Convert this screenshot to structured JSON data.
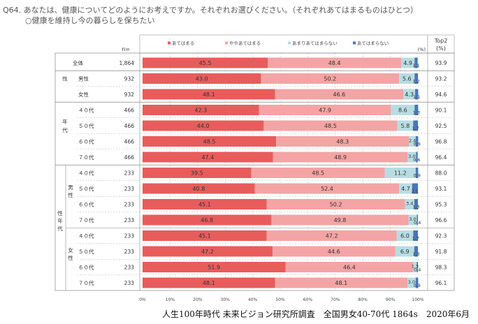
{
  "header": {
    "question": "Q64. あなたは、健康についてどのようにお考えですか。それぞれお選びください。（それぞれあてはまるものはひとつ）",
    "subtitle": "○健康を維持し今の暮らしを保ちたい"
  },
  "table": {
    "n_label": "n=",
    "pct_label": "(%)",
    "top2_label_line1": "Top2",
    "top2_label_line2": "(%)"
  },
  "footer": "人生100年時代 未来ビジョン研究所調査　全国男女40-70代 1864s　2020年6月",
  "groups": {
    "sex": "性",
    "age_line1": "年",
    "age_line2": "代",
    "sexage_line1": "性",
    "sexage_line2": "年",
    "sexage_line3": "代",
    "male_line1": "男",
    "male_line2": "性",
    "female_line1": "女",
    "female_line2": "性"
  },
  "colors": {
    "applies": "#e85c5c",
    "somewhat": "#f4a4a4",
    "not_really": "#b7dde3",
    "not_at_all": "#4a74b9"
  },
  "chart_data": {
    "type": "bar",
    "orientation": "horizontal",
    "stacked": true,
    "title": "○健康を維持し今の暮らしを保ちたい",
    "xlim": [
      0,
      100
    ],
    "x_ticks": [
      "0%",
      "10%",
      "20%",
      "30%",
      "40%",
      "50%",
      "60%",
      "70%",
      "80%",
      "90%",
      "100%"
    ],
    "legend": [
      "あてはまる",
      "ややあてはまる",
      "あまりあてはまらない",
      "あてはまらない"
    ],
    "legend_position": "top",
    "rows": [
      {
        "label": "全体",
        "n": "1,864",
        "values": [
          45.5,
          48.4,
          4.9,
          1.1
        ],
        "labels": [
          "45.5",
          "48.4",
          "4.9",
          "1.1"
        ],
        "top2": "93.9"
      },
      {
        "label": "男性",
        "n": "932",
        "values": [
          43.0,
          50.2,
          5.6,
          1.2
        ],
        "labels": [
          "43.0",
          "50.2",
          "5.6",
          "1.2"
        ],
        "top2": "93.2"
      },
      {
        "label": "女性",
        "n": "932",
        "values": [
          48.1,
          46.6,
          4.3,
          1.1
        ],
        "labels": [
          "48.1",
          "46.6",
          "4.3",
          "1.1"
        ],
        "top2": "94.6"
      },
      {
        "label": "４０代",
        "n": "466",
        "values": [
          42.3,
          47.9,
          8.6,
          1.3
        ],
        "labels": [
          "42.3",
          "47.9",
          "8.6",
          "1.3"
        ],
        "top2": "90.1"
      },
      {
        "label": "５０代",
        "n": "466",
        "values": [
          44.0,
          48.5,
          5.8,
          1.7
        ],
        "labels": [
          "44.0",
          "48.5",
          "5.8",
          "1.7"
        ],
        "top2": "92.5"
      },
      {
        "label": "６０代",
        "n": "466",
        "values": [
          48.5,
          48.3,
          2.4,
          0.9
        ],
        "labels": [
          "48.5",
          "48.3",
          "2.4",
          "0.9"
        ],
        "top2": "96.8"
      },
      {
        "label": "７０代",
        "n": "466",
        "values": [
          47.4,
          48.9,
          3.0,
          0.6
        ],
        "labels": [
          "47.4",
          "48.9",
          "3.0",
          "0.6"
        ],
        "top2": "96.4"
      },
      {
        "label": "４０代",
        "n": "233",
        "values": [
          39.5,
          48.5,
          11.2,
          0.9
        ],
        "labels": [
          "39.5",
          "48.5",
          "11.2",
          "0.9"
        ],
        "top2": "88.0"
      },
      {
        "label": "５０代",
        "n": "233",
        "values": [
          40.8,
          52.4,
          4.7,
          2.1
        ],
        "labels": [
          "40.8",
          "52.4",
          "4.7",
          "2.1"
        ],
        "top2": "93.1"
      },
      {
        "label": "６０代",
        "n": "233",
        "values": [
          45.1,
          50.2,
          3.4,
          1.3
        ],
        "labels": [
          "45.1",
          "50.2",
          "3.4",
          "1.3"
        ],
        "top2": "95.3"
      },
      {
        "label": "７０代",
        "n": "233",
        "values": [
          46.8,
          49.8,
          3.0,
          0.4
        ],
        "labels": [
          "46.8",
          "49.8",
          "3.0",
          "0.4"
        ],
        "top2": "96.6"
      },
      {
        "label": "４０代",
        "n": "233",
        "values": [
          45.1,
          47.2,
          6.0,
          1.7
        ],
        "labels": [
          "45.1",
          "47.2",
          "6.0",
          "1.7"
        ],
        "top2": "92.3"
      },
      {
        "label": "５０代",
        "n": "233",
        "values": [
          47.2,
          44.6,
          6.9,
          1.3
        ],
        "labels": [
          "47.2",
          "44.6",
          "6.9",
          "1.3"
        ],
        "top2": "91.8"
      },
      {
        "label": "６０代",
        "n": "233",
        "values": [
          51.9,
          46.4,
          1.3,
          0.4
        ],
        "labels": [
          "51.9",
          "46.4",
          "1.3",
          "0.4"
        ],
        "top2": "98.3"
      },
      {
        "label": "７０代",
        "n": "233",
        "values": [
          48.1,
          48.1,
          3.0,
          0.9
        ],
        "labels": [
          "48.1",
          "48.1",
          "3.0",
          "0.9"
        ],
        "top2": "96.1"
      }
    ]
  }
}
